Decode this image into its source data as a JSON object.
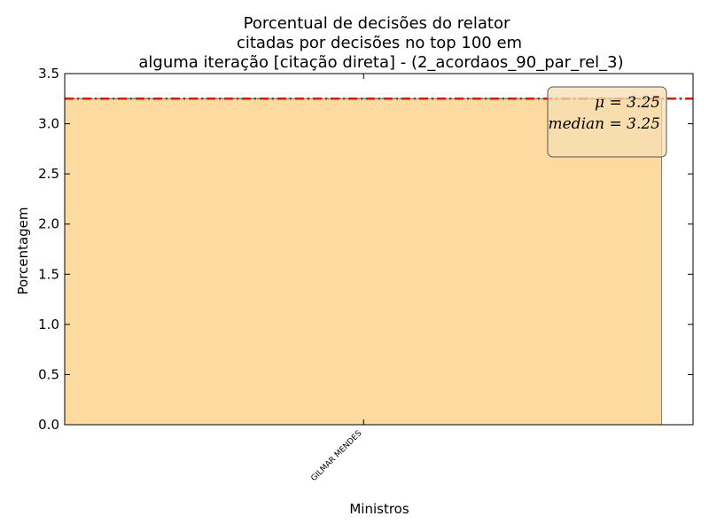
{
  "chart_data": {
    "type": "bar",
    "title_lines": [
      "Porcentual de decisões do relator",
      "citadas por decisões no top 100 em",
      "alguma iteração [citação direta] - (2_acordaos_90_par_rel_3)"
    ],
    "xlabel": "Ministros",
    "ylabel": "Porcentagem",
    "categories": [
      "GILMAR MENDES"
    ],
    "values": [
      3.25
    ],
    "ylim": [
      0,
      3.5
    ],
    "yticks": [
      "0.0",
      "0.5",
      "1.0",
      "1.5",
      "2.0",
      "2.5",
      "3.0",
      "3.5"
    ],
    "ytick_values": [
      0,
      0.5,
      1.0,
      1.5,
      2.0,
      2.5,
      3.0,
      3.5
    ],
    "mean": 3.25,
    "median": 3.25,
    "stats_box": {
      "mean_text": "μ = 3.25",
      "median_text": "median = 3.25",
      "placement": "top-right"
    },
    "grid": false,
    "colors": {
      "bar_fill": "#fddba0",
      "bar_edge": "#8a7a66",
      "mean_line": "#cc2200",
      "median_line": "#2e8b57",
      "box_fill": "#f5deb3",
      "box_edge": "#555555"
    }
  }
}
